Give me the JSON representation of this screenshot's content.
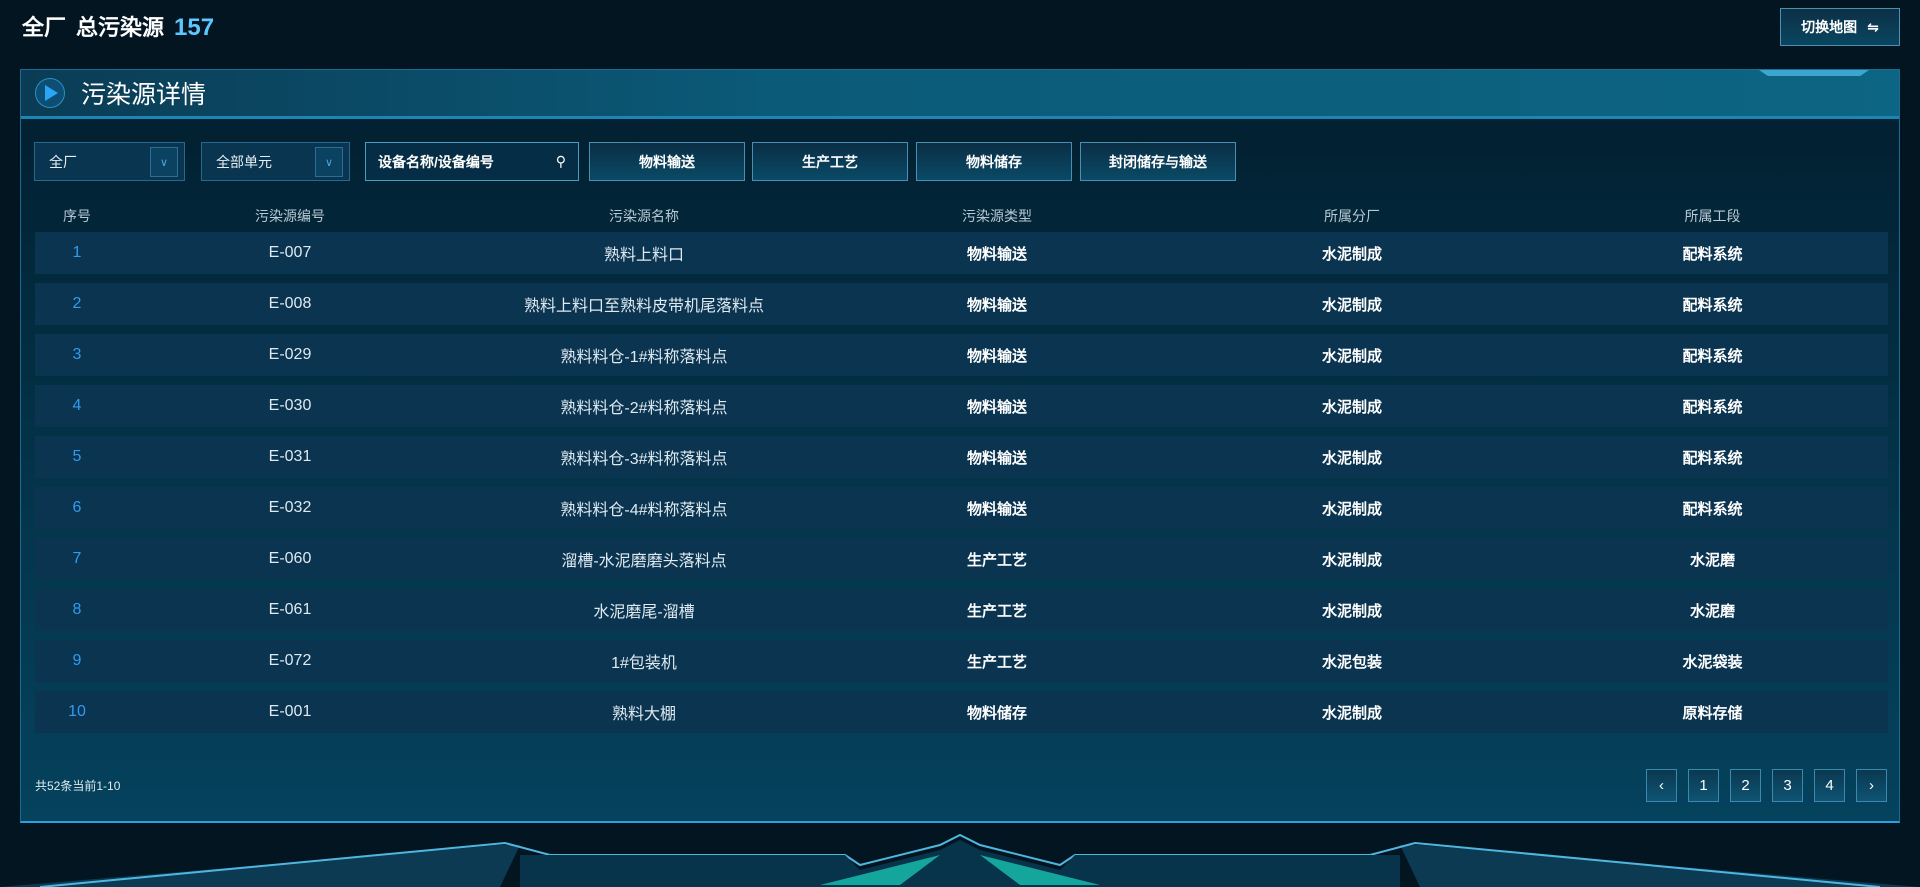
{
  "header": {
    "scope": "全厂",
    "label": "总污染源",
    "count": "157",
    "switch_label": "切换地图",
    "switch_icon": "swap-icon"
  },
  "panel": {
    "title": "污染源详情"
  },
  "filters": {
    "plant": "全厂",
    "unit": "全部单元",
    "search_placeholder": "设备名称/设备编号",
    "buttons": [
      "物料输送",
      "生产工艺",
      "物料储存",
      "封闭储存与输送"
    ]
  },
  "table": {
    "columns": [
      "序号",
      "污染源编号",
      "污染源名称",
      "污染源类型",
      "所属分厂",
      "所属工段"
    ],
    "rows": [
      [
        "1",
        "E-007",
        "熟料上料口",
        "物料输送",
        "水泥制成",
        "配料系统"
      ],
      [
        "2",
        "E-008",
        "熟料上料口至熟料皮带机尾落料点",
        "物料输送",
        "水泥制成",
        "配料系统"
      ],
      [
        "3",
        "E-029",
        "熟料料仓-1#料称落料点",
        "物料输送",
        "水泥制成",
        "配料系统"
      ],
      [
        "4",
        "E-030",
        "熟料料仓-2#料称落料点",
        "物料输送",
        "水泥制成",
        "配料系统"
      ],
      [
        "5",
        "E-031",
        "熟料料仓-3#料称落料点",
        "物料输送",
        "水泥制成",
        "配料系统"
      ],
      [
        "6",
        "E-032",
        "熟料料仓-4#料称落料点",
        "物料输送",
        "水泥制成",
        "配料系统"
      ],
      [
        "7",
        "E-060",
        "溜槽-水泥磨磨头落料点",
        "生产工艺",
        "水泥制成",
        "水泥磨"
      ],
      [
        "8",
        "E-061",
        "水泥磨尾-溜槽",
        "生产工艺",
        "水泥制成",
        "水泥磨"
      ],
      [
        "9",
        "E-072",
        "1#包装机",
        "生产工艺",
        "水泥包装",
        "水泥袋装"
      ],
      [
        "10",
        "E-001",
        "熟料大棚",
        "物料储存",
        "水泥制成",
        "原料存储"
      ]
    ]
  },
  "pagination": {
    "summary": "共52条当前1-10",
    "prev": "‹",
    "next": "›",
    "pages": [
      "1",
      "2",
      "3",
      "4"
    ]
  }
}
